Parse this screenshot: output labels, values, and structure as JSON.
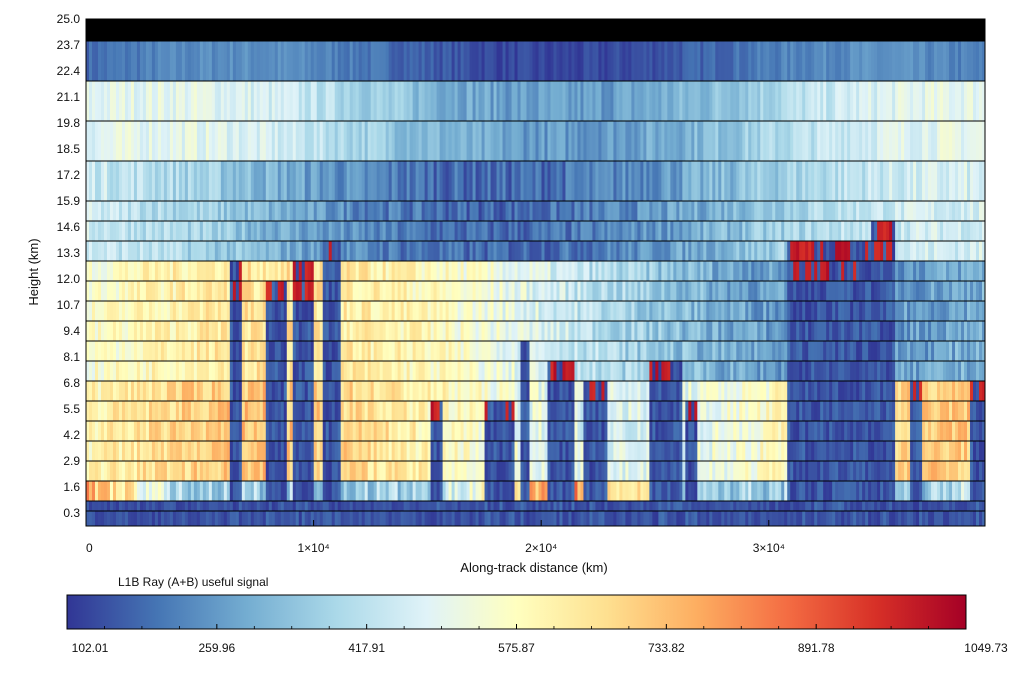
{
  "chart_data": [
    {
      "type": "heatmap",
      "title": "",
      "xlabel": "Along-track distance (km)",
      "ylabel": "Height (km)",
      "xlim": [
        0,
        39500
      ],
      "ylim": [
        -0.35,
        25.0
      ],
      "x_ticks": [
        {
          "value": 0,
          "label": "0"
        },
        {
          "value": 10000,
          "label": "1×10⁴"
        },
        {
          "value": 20000,
          "label": "2×10⁴"
        },
        {
          "value": 30000,
          "label": "3×10⁴"
        }
      ],
      "y_ticks": [
        "25.0",
        "23.7",
        "22.4",
        "21.1",
        "19.8",
        "18.5",
        "17.2",
        "15.9",
        "14.6",
        "13.3",
        "12.0",
        "10.7",
        "9.4",
        "8.1",
        "6.8",
        "5.5",
        "4.2",
        "2.9",
        "1.6",
        "0.3"
      ],
      "range_bin_boundaries_km": [
        25.0,
        23.9,
        21.9,
        19.9,
        17.9,
        15.9,
        14.9,
        13.9,
        12.9,
        11.9,
        10.9,
        9.9,
        8.9,
        7.9,
        6.9,
        5.9,
        4.9,
        3.9,
        2.9,
        1.9,
        0.9,
        0.4,
        -0.35
      ],
      "top_bin_no_data": true,
      "value_range": [
        102.01,
        1049.73
      ],
      "colormap": "RdYlBu_r",
      "cloud_columns": [
        {
          "x": [
            6300,
            6900
          ],
          "top_km": 12.5
        },
        {
          "x": [
            7900,
            8800
          ],
          "top_km": 12.2
        },
        {
          "x": [
            9100,
            10000
          ],
          "top_km": 12.5
        },
        {
          "x": [
            10400,
            11200
          ],
          "top_km": 14.0
        },
        {
          "x": [
            15200,
            15700
          ],
          "top_km": 6.0
        },
        {
          "x": [
            17500,
            18800
          ],
          "top_km": 6.0
        },
        {
          "x": [
            19100,
            19500
          ],
          "top_km": 9.0
        },
        {
          "x": [
            20300,
            21500
          ],
          "top_km": 8.0
        },
        {
          "x": [
            21900,
            22900
          ],
          "top_km": 6.8
        },
        {
          "x": [
            24800,
            26200
          ],
          "top_km": 8.0
        },
        {
          "x": [
            26300,
            26800
          ],
          "top_km": 5.5
        },
        {
          "x": [
            30800,
            34500
          ],
          "top_km": 13.5
        },
        {
          "x": [
            34500,
            35500
          ],
          "top_km": 14.5
        },
        {
          "x": [
            36200,
            36700
          ],
          "top_km": 7.0
        },
        {
          "x": [
            38800,
            39500
          ],
          "top_km": 7.0
        }
      ]
    },
    {
      "type": "colorbar",
      "label": "L1B Ray (A+B) useful signal",
      "min": 102.01,
      "max": 1049.73,
      "tick_labels": [
        "102.01",
        "259.96",
        "417.91",
        "575.87",
        "733.82",
        "891.78",
        "1049.73"
      ],
      "colors": [
        "#313695",
        "#4575b4",
        "#74add1",
        "#abd9e9",
        "#e0f3f8",
        "#ffffbf",
        "#fee090",
        "#fdae61",
        "#f46d43",
        "#d73027",
        "#a50026"
      ]
    }
  ]
}
